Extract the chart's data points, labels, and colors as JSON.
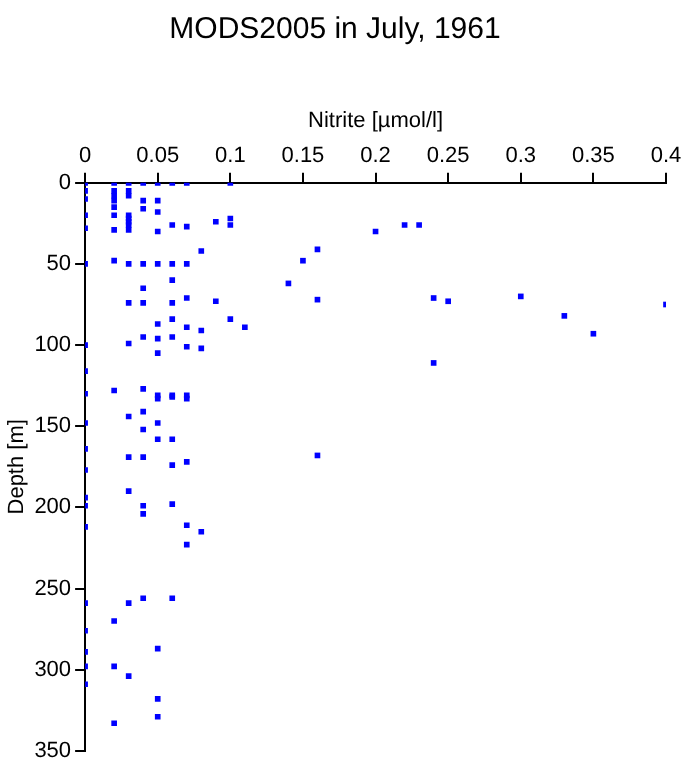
{
  "chart_data": {
    "type": "scatter",
    "title": "MODS2005 in July, 1961",
    "xlabel": "Nitrite [µmol/l]",
    "ylabel": "Depth [m]",
    "x": [
      0,
      0,
      0,
      0,
      0,
      0,
      0,
      0,
      0,
      0,
      0,
      0,
      0,
      0,
      0,
      0,
      0,
      0,
      0,
      0,
      0.02,
      0.02,
      0.02,
      0.02,
      0.02,
      0.02,
      0.02,
      0.02,
      0.02,
      0.02,
      0.02,
      0.02,
      0.03,
      0.03,
      0.03,
      0.03,
      0.03,
      0.03,
      0.03,
      0.03,
      0.03,
      0.03,
      0.03,
      0.03,
      0.03,
      0.03,
      0.03,
      0.03,
      0.04,
      0.04,
      0.04,
      0.04,
      0.04,
      0.04,
      0.04,
      0.04,
      0.04,
      0.04,
      0.04,
      0.04,
      0.04,
      0.04,
      0.05,
      0.05,
      0.05,
      0.05,
      0.05,
      0.05,
      0.05,
      0.05,
      0.05,
      0.05,
      0.05,
      0.05,
      0.05,
      0.05,
      0.05,
      0.06,
      0.06,
      0.06,
      0.06,
      0.06,
      0.06,
      0.06,
      0.06,
      0.06,
      0.06,
      0.06,
      0.06,
      0.06,
      0.07,
      0.07,
      0.07,
      0.07,
      0.07,
      0.07,
      0.07,
      0.07,
      0.07,
      0.07,
      0.07,
      0.08,
      0.08,
      0.08,
      0.08,
      0.09,
      0.09,
      0.1,
      0.1,
      0.1,
      0.1,
      0.11,
      0.14,
      0.15,
      0.16,
      0.16,
      0.16,
      0.2,
      0.22,
      0.23,
      0.24,
      0.24,
      0.25,
      0.3,
      0.33,
      0.35,
      0.4
    ],
    "values": [
      0,
      5,
      10,
      20,
      28,
      50,
      100,
      116,
      130,
      148,
      164,
      177,
      194,
      199,
      212,
      259,
      276,
      289,
      298,
      309,
      0,
      5,
      8,
      11,
      15,
      20,
      29,
      48,
      128,
      270,
      298,
      333,
      0,
      5,
      8,
      20,
      22,
      24,
      26,
      29,
      50,
      74,
      99,
      144,
      169,
      190,
      259,
      304,
      0,
      11,
      16,
      50,
      65,
      74,
      95,
      127,
      141,
      152,
      169,
      199,
      204,
      256,
      0,
      11,
      18,
      30,
      50,
      87,
      96,
      105,
      131,
      133,
      148,
      158,
      287,
      318,
      329,
      0,
      26,
      50,
      60,
      74,
      84,
      95,
      131,
      132,
      158,
      174,
      198,
      256,
      0,
      27,
      50,
      71,
      89,
      101,
      131,
      133,
      172,
      211,
      223,
      42,
      91,
      102,
      215,
      24,
      73,
      0,
      22,
      26,
      84,
      89,
      62,
      48,
      41,
      72,
      168,
      30,
      26,
      26,
      71,
      111,
      73,
      70,
      82,
      93,
      75
    ],
    "color": "#0000ff",
    "marker": "square",
    "xlim": [
      0,
      0.4
    ],
    "xticks": [
      0,
      0.05,
      0.1,
      0.15,
      0.2,
      0.25,
      0.3,
      0.35,
      0.4
    ],
    "ylim": [
      350,
      0
    ],
    "yticks": [
      0,
      50,
      100,
      150,
      200,
      250,
      300,
      350
    ],
    "grid": false,
    "legend": false
  }
}
